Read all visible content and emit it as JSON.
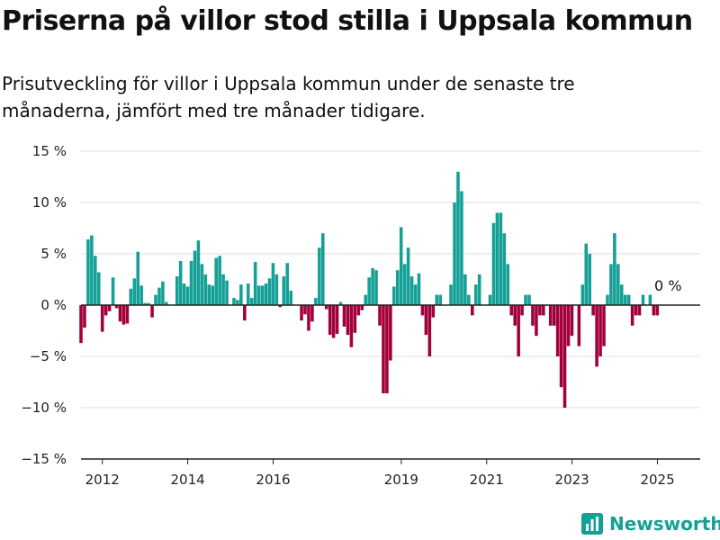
{
  "page": {
    "title": "Priserna på villor stod stilla i Uppsala kommun",
    "subtitle": "Prisutveckling för villor i Uppsala kommun under de senaste tre månaderna, jämfört med tre månader tidigare.",
    "brand": "Newsworthy"
  },
  "colors": {
    "positive": "#14a096",
    "negative": "#a3003b",
    "grid": "#dddddd",
    "axis": "#222222"
  },
  "chart_data": {
    "type": "bar",
    "title": "Priserna på villor stod stilla i Uppsala kommun",
    "xlabel": "",
    "ylabel": "",
    "ylim": [
      -15,
      15
    ],
    "yticks": [
      15,
      10,
      5,
      0,
      -5,
      -10,
      -15
    ],
    "ytick_labels": [
      "15 %",
      "10 %",
      "5 %",
      "0 %",
      "−5 %",
      "−10 %",
      "−15 %"
    ],
    "xticks": [
      2012,
      2014,
      2016,
      2019,
      2021,
      2023,
      2025
    ],
    "xlim": [
      2011.5,
      2026.0
    ],
    "grid": true,
    "annotation": {
      "text": "0 %",
      "value": 0
    },
    "x_start": 2011.5,
    "x_step": 0.0833,
    "values": [
      -3.7,
      -2.2,
      6.4,
      6.8,
      4.8,
      3.2,
      -2.6,
      -1.0,
      -0.6,
      2.7,
      -0.3,
      -1.6,
      -1.9,
      -1.8,
      1.6,
      2.6,
      5.2,
      1.9,
      0.2,
      0.2,
      -1.2,
      1.0,
      1.7,
      2.3,
      0.3,
      0,
      0,
      2.8,
      4.3,
      2.1,
      1.8,
      4.3,
      5.3,
      6.3,
      4.0,
      3.0,
      2.0,
      1.9,
      4.6,
      4.8,
      3.0,
      2.4,
      0,
      0.7,
      0.5,
      2.0,
      -1.5,
      2.1,
      0.7,
      4.2,
      1.9,
      1.9,
      2.1,
      2.6,
      4.1,
      3.0,
      -0.2,
      2.8,
      4.1,
      1.4,
      0,
      0,
      -1.5,
      -0.9,
      -2.5,
      -1.6,
      0.7,
      5.6,
      7.0,
      -0.4,
      -2.9,
      -3.2,
      -2.8,
      0.3,
      -2.1,
      -2.9,
      -4.1,
      -2.7,
      -1.0,
      -0.5,
      1.0,
      2.7,
      3.6,
      3.4,
      -2.0,
      -8.6,
      -8.6,
      -5.4,
      1.8,
      3.4,
      7.6,
      4.0,
      5.6,
      2.8,
      2.0,
      3.1,
      -1.0,
      -2.9,
      -5.0,
      -1.2,
      1.0,
      1.0,
      0,
      0,
      2.0,
      10.0,
      13.0,
      11.1,
      3.0,
      1.0,
      -1.0,
      2.0,
      3.0,
      0,
      0,
      1.0,
      8.0,
      9.0,
      9.0,
      7.0,
      4.0,
      -1.0,
      -2.0,
      -5.0,
      -1.0,
      1.0,
      1.0,
      -2.0,
      -3.0,
      -1.0,
      -1.0,
      0,
      -2.0,
      -2.0,
      -5.0,
      -8.0,
      -10.0,
      -4.0,
      -3.0,
      0,
      -4.0,
      2.0,
      6.0,
      5.0,
      -1.0,
      -6.0,
      -5.0,
      -4.0,
      1.0,
      4.0,
      7.0,
      4.0,
      2.0,
      1.0,
      1.0,
      -2.0,
      -1.0,
      -1.0,
      1.0,
      0,
      1.0,
      -1.0,
      -1.0
    ]
  }
}
